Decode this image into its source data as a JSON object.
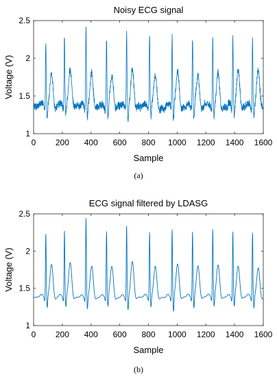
{
  "chart_data": [
    {
      "type": "line",
      "title": "Noisy ECG signal",
      "xlabel": "Sample",
      "ylabel": "Voltage (V)",
      "xlim": [
        0,
        1600
      ],
      "ylim": [
        1,
        2.5
      ],
      "xticks": [
        "0",
        "200",
        "400",
        "600",
        "800",
        "1000",
        "1200",
        "1400",
        "1600"
      ],
      "yticks": [
        "1",
        "1.5",
        "2",
        "2.5"
      ],
      "caption": "(a)",
      "color": "#0072BD",
      "grid": false,
      "noisy": true,
      "baseline": 1.36,
      "r_peaks": [
        {
          "x": 85,
          "y": 2.27
        },
        {
          "x": 215,
          "y": 2.29
        },
        {
          "x": 365,
          "y": 2.47
        },
        {
          "x": 508,
          "y": 2.29
        },
        {
          "x": 648,
          "y": 2.35
        },
        {
          "x": 808,
          "y": 2.29
        },
        {
          "x": 965,
          "y": 2.3
        },
        {
          "x": 1107,
          "y": 2.29
        },
        {
          "x": 1248,
          "y": 2.31
        },
        {
          "x": 1388,
          "y": 2.29
        },
        {
          "x": 1525,
          "y": 2.28
        }
      ],
      "t_waves": [
        {
          "x": 125,
          "y": 1.78
        },
        {
          "x": 255,
          "y": 1.84
        },
        {
          "x": 405,
          "y": 1.8
        },
        {
          "x": 545,
          "y": 1.78
        },
        {
          "x": 688,
          "y": 1.86
        },
        {
          "x": 848,
          "y": 1.78
        },
        {
          "x": 1003,
          "y": 1.82
        },
        {
          "x": 1145,
          "y": 1.78
        },
        {
          "x": 1285,
          "y": 1.81
        },
        {
          "x": 1425,
          "y": 1.82
        },
        {
          "x": 1565,
          "y": 1.84
        }
      ],
      "s_troughs": [
        {
          "x": 95,
          "y": 1.22
        },
        {
          "x": 225,
          "y": 1.23
        },
        {
          "x": 375,
          "y": 1.2
        },
        {
          "x": 518,
          "y": 1.22
        },
        {
          "x": 658,
          "y": 1.17
        },
        {
          "x": 818,
          "y": 1.22
        },
        {
          "x": 975,
          "y": 1.15
        },
        {
          "x": 1117,
          "y": 1.2
        },
        {
          "x": 1258,
          "y": 1.22
        },
        {
          "x": 1398,
          "y": 1.22
        },
        {
          "x": 1535,
          "y": 1.22
        }
      ]
    },
    {
      "type": "line",
      "title": "ECG signal filtered by LDASG",
      "xlabel": "Sample",
      "ylabel": "Voltage (V)",
      "xlim": [
        0,
        1600
      ],
      "ylim": [
        1,
        2.5
      ],
      "xticks": [
        "0",
        "200",
        "400",
        "600",
        "800",
        "1000",
        "1200",
        "1400",
        "1600"
      ],
      "yticks": [
        "1",
        "1.5",
        "2",
        "2.5"
      ],
      "caption": "(b)",
      "color": "#0072BD",
      "grid": false,
      "noisy": false,
      "baseline": 1.38,
      "r_peaks": [
        {
          "x": 85,
          "y": 2.24
        },
        {
          "x": 215,
          "y": 2.28
        },
        {
          "x": 365,
          "y": 2.46
        },
        {
          "x": 508,
          "y": 2.27
        },
        {
          "x": 648,
          "y": 2.35
        },
        {
          "x": 808,
          "y": 2.26
        },
        {
          "x": 965,
          "y": 2.3
        },
        {
          "x": 1107,
          "y": 2.27
        },
        {
          "x": 1248,
          "y": 2.3
        },
        {
          "x": 1388,
          "y": 2.27
        },
        {
          "x": 1525,
          "y": 2.26
        }
      ],
      "t_waves": [
        {
          "x": 125,
          "y": 1.82
        },
        {
          "x": 255,
          "y": 1.85
        },
        {
          "x": 405,
          "y": 1.8
        },
        {
          "x": 545,
          "y": 1.8
        },
        {
          "x": 688,
          "y": 1.86
        },
        {
          "x": 848,
          "y": 1.8
        },
        {
          "x": 1003,
          "y": 1.83
        },
        {
          "x": 1145,
          "y": 1.8
        },
        {
          "x": 1285,
          "y": 1.81
        },
        {
          "x": 1425,
          "y": 1.8
        },
        {
          "x": 1565,
          "y": 1.78
        }
      ],
      "s_troughs": [
        {
          "x": 95,
          "y": 1.23
        },
        {
          "x": 225,
          "y": 1.24
        },
        {
          "x": 375,
          "y": 1.22
        },
        {
          "x": 518,
          "y": 1.24
        },
        {
          "x": 658,
          "y": 1.2
        },
        {
          "x": 818,
          "y": 1.24
        },
        {
          "x": 975,
          "y": 1.17
        },
        {
          "x": 1117,
          "y": 1.22
        },
        {
          "x": 1258,
          "y": 1.24
        },
        {
          "x": 1398,
          "y": 1.24
        },
        {
          "x": 1535,
          "y": 1.23
        }
      ]
    }
  ]
}
